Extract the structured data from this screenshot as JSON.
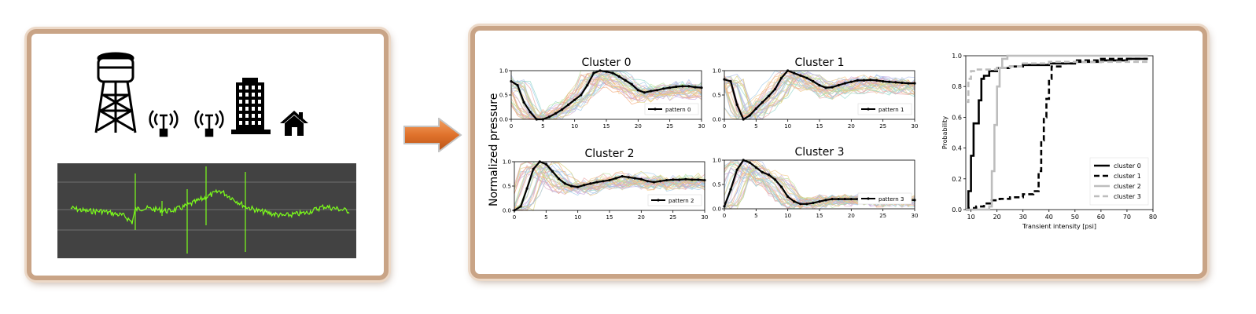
{
  "icons": [
    "water-tower-icon",
    "antenna-icon",
    "antenna-icon",
    "building-icon",
    "house-icon",
    "arrow-right-icon"
  ],
  "colors": {
    "frame": "#c9a486",
    "arrow": "#e0722c",
    "signal_bg": "#424242",
    "signal": "#7cff1a"
  },
  "ylabel": "Normalized pressure",
  "clusters": [
    {
      "title": "Cluster 0",
      "legend": "pattern 0",
      "pattern": [
        0.78,
        0.7,
        0.35,
        0.15,
        0.0,
        0.0,
        0.05,
        0.12,
        0.2,
        0.3,
        0.4,
        0.5,
        0.7,
        0.95,
        1.0,
        0.98,
        0.95,
        0.88,
        0.8,
        0.72,
        0.6,
        0.55,
        0.58,
        0.6,
        0.63,
        0.65,
        0.67,
        0.68,
        0.68,
        0.66,
        0.65
      ]
    },
    {
      "title": "Cluster 1",
      "legend": "pattern 1",
      "pattern": [
        0.82,
        0.78,
        0.3,
        0.0,
        0.08,
        0.22,
        0.35,
        0.48,
        0.62,
        0.85,
        1.0,
        0.95,
        0.9,
        0.85,
        0.78,
        0.7,
        0.65,
        0.66,
        0.7,
        0.74,
        0.77,
        0.8,
        0.8,
        0.81,
        0.8,
        0.78,
        0.77,
        0.76,
        0.75,
        0.74,
        0.74
      ]
    },
    {
      "title": "Cluster 2",
      "legend": "pattern 2",
      "pattern": [
        0.0,
        0.08,
        0.45,
        0.85,
        1.0,
        0.95,
        0.8,
        0.65,
        0.55,
        0.5,
        0.48,
        0.52,
        0.55,
        0.58,
        0.6,
        0.62,
        0.66,
        0.7,
        0.68,
        0.66,
        0.64,
        0.6,
        0.58,
        0.6,
        0.62,
        0.63,
        0.63,
        0.64,
        0.63,
        0.63,
        0.62
      ]
    },
    {
      "title": "Cluster 3",
      "legend": "pattern 3",
      "pattern": [
        0.05,
        0.4,
        0.8,
        1.0,
        0.95,
        0.85,
        0.75,
        0.7,
        0.6,
        0.45,
        0.25,
        0.15,
        0.1,
        0.1,
        0.12,
        0.15,
        0.18,
        0.2,
        0.2,
        0.2,
        0.2,
        0.2,
        0.2,
        0.2,
        0.18,
        0.18,
        0.18,
        0.18,
        0.18,
        0.18,
        0.18
      ]
    }
  ],
  "cluster_axes": {
    "xlim": [
      0,
      30
    ],
    "ylim": [
      0,
      1
    ],
    "xticks": [
      "0",
      "5",
      "10",
      "15",
      "20",
      "25",
      "30"
    ],
    "yticks": [
      "0.0",
      "0.5",
      "1.0"
    ]
  },
  "cdf": {
    "xlabel": "Transient intensity [psi]",
    "ylabel": "Probability",
    "xlim": [
      8,
      80
    ],
    "ylim": [
      0,
      1
    ],
    "xticks": [
      "10",
      "20",
      "30",
      "40",
      "50",
      "60",
      "70",
      "80"
    ],
    "yticks": [
      "0.0",
      "0.2",
      "0.4",
      "0.6",
      "0.8",
      "1.0"
    ],
    "legend": [
      "cluster 0",
      "cluster 1",
      "cluster 2",
      "cluster 3"
    ],
    "series": [
      {
        "name": "cluster 0",
        "points": [
          [
            8,
            0
          ],
          [
            9,
            0.12
          ],
          [
            10,
            0.35
          ],
          [
            11,
            0.56
          ],
          [
            13,
            0.71
          ],
          [
            14,
            0.85
          ],
          [
            15,
            0.87
          ],
          [
            17,
            0.9
          ],
          [
            20,
            0.92
          ],
          [
            25,
            0.93
          ],
          [
            30,
            0.94
          ],
          [
            40,
            0.95
          ],
          [
            50,
            0.96
          ],
          [
            60,
            0.97
          ],
          [
            70,
            0.98
          ],
          [
            78,
            0.98
          ]
        ]
      },
      {
        "name": "cluster 1",
        "points": [
          [
            8,
            0
          ],
          [
            9,
            0.01
          ],
          [
            12,
            0.02
          ],
          [
            15,
            0.04
          ],
          [
            18,
            0.06
          ],
          [
            21,
            0.07
          ],
          [
            25,
            0.08
          ],
          [
            30,
            0.1
          ],
          [
            34,
            0.12
          ],
          [
            36,
            0.25
          ],
          [
            37,
            0.45
          ],
          [
            38,
            0.6
          ],
          [
            39,
            0.72
          ],
          [
            40,
            0.85
          ],
          [
            41,
            0.93
          ],
          [
            45,
            0.95
          ],
          [
            50,
            0.97
          ],
          [
            60,
            0.98
          ],
          [
            78,
            0.98
          ]
        ]
      },
      {
        "name": "cluster 2",
        "points": [
          [
            8,
            0
          ],
          [
            10,
            0
          ],
          [
            14,
            0
          ],
          [
            17,
            0.02
          ],
          [
            18,
            0.25
          ],
          [
            19,
            0.55
          ],
          [
            20,
            0.8
          ],
          [
            21,
            0.92
          ],
          [
            22,
            0.98
          ],
          [
            24,
            1.0
          ],
          [
            78,
            1.0
          ]
        ]
      },
      {
        "name": "cluster 3",
        "points": [
          [
            8,
            0.7
          ],
          [
            9,
            0.85
          ],
          [
            10,
            0.9
          ],
          [
            12,
            0.91
          ],
          [
            15,
            0.91
          ],
          [
            20,
            0.92
          ],
          [
            25,
            0.93
          ],
          [
            30,
            0.95
          ],
          [
            40,
            0.96
          ],
          [
            50,
            0.96
          ],
          [
            60,
            0.96
          ],
          [
            70,
            0.96
          ],
          [
            78,
            0.96
          ]
        ]
      }
    ]
  }
}
